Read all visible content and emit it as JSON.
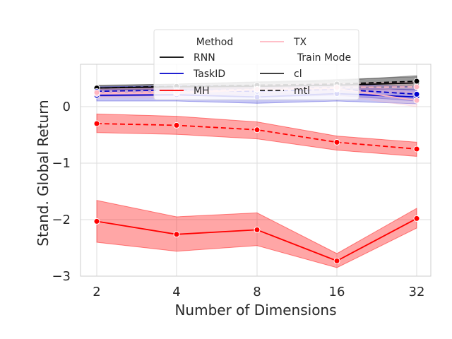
{
  "chart_data": {
    "type": "line",
    "xlabel": "Number of Dimensions",
    "ylabel": "Stand. Global Return",
    "x": [
      2,
      4,
      8,
      16,
      32
    ],
    "x_scale": "log2",
    "x_tick_labels": [
      "2",
      "4",
      "8",
      "16",
      "32"
    ],
    "y_ticks": [
      0,
      -1,
      -2,
      -3
    ],
    "y_tick_labels": [
      "0",
      "−1",
      "−2",
      "−3"
    ],
    "ylim": [
      -3,
      0.75
    ],
    "grid": true,
    "legend_placement": "top-center",
    "legend": {
      "method_title": "Method",
      "train_mode_title": "Train Mode",
      "methods": [
        {
          "label": "RNN",
          "color": "#000000"
        },
        {
          "label": "TaskID",
          "color": "#0000cc"
        },
        {
          "label": "MH",
          "color": "#ff0000"
        },
        {
          "label": "TX",
          "color": "#ffb6c1"
        }
      ],
      "train_modes": [
        {
          "label": "cl",
          "dash": "solid"
        },
        {
          "label": "mtl",
          "dash": "dashed"
        }
      ]
    },
    "series": [
      {
        "method": "RNN",
        "mode": "cl",
        "color": "#000000",
        "values": [
          0.33,
          0.35,
          0.36,
          0.38,
          0.42
        ],
        "lower": [
          0.29,
          0.3,
          0.3,
          0.31,
          0.3
        ],
        "upper": [
          0.38,
          0.4,
          0.43,
          0.46,
          0.55
        ]
      },
      {
        "method": "RNN",
        "mode": "mtl",
        "color": "#000000",
        "values": [
          0.33,
          0.36,
          0.38,
          0.4,
          0.45
        ],
        "lower": [
          0.3,
          0.31,
          0.32,
          0.33,
          0.35
        ],
        "upper": [
          0.37,
          0.4,
          0.44,
          0.48,
          0.53
        ]
      },
      {
        "method": "TaskID",
        "mode": "cl",
        "color": "#0000cc",
        "values": [
          0.2,
          0.21,
          0.17,
          0.23,
          0.17
        ],
        "lower": [
          0.1,
          0.1,
          0.06,
          0.1,
          0.05
        ],
        "upper": [
          0.3,
          0.32,
          0.3,
          0.34,
          0.3
        ]
      },
      {
        "method": "TaskID",
        "mode": "mtl",
        "color": "#0000cc",
        "values": [
          0.27,
          0.29,
          0.27,
          0.31,
          0.22
        ],
        "lower": [
          0.18,
          0.2,
          0.17,
          0.2,
          0.1
        ],
        "upper": [
          0.35,
          0.37,
          0.37,
          0.4,
          0.35
        ]
      },
      {
        "method": "TX",
        "mode": "cl",
        "color": "#ffb6c1",
        "values": [
          0.23,
          0.24,
          0.3,
          0.32,
          0.11
        ],
        "lower": [
          0.15,
          0.16,
          0.2,
          0.2,
          0.0
        ],
        "upper": [
          0.32,
          0.33,
          0.38,
          0.42,
          0.25
        ]
      },
      {
        "method": "TX",
        "mode": "mtl",
        "color": "#ffb6c1",
        "values": [
          0.25,
          0.27,
          0.31,
          0.34,
          0.35
        ],
        "lower": [
          0.18,
          0.2,
          0.24,
          0.26,
          0.25
        ],
        "upper": [
          0.31,
          0.33,
          0.37,
          0.41,
          0.44
        ]
      },
      {
        "method": "MH",
        "mode": "mtl",
        "color": "#ff0000",
        "values": [
          -0.3,
          -0.33,
          -0.41,
          -0.63,
          -0.75
        ],
        "lower": [
          -0.46,
          -0.49,
          -0.57,
          -0.77,
          -0.88
        ],
        "upper": [
          -0.13,
          -0.17,
          -0.27,
          -0.52,
          -0.63
        ]
      },
      {
        "method": "MH",
        "mode": "cl",
        "color": "#ff0000",
        "values": [
          -2.03,
          -2.26,
          -2.18,
          -2.73,
          -1.98
        ],
        "lower": [
          -2.4,
          -2.56,
          -2.46,
          -2.85,
          -2.15
        ],
        "upper": [
          -1.66,
          -1.95,
          -1.88,
          -2.6,
          -1.8
        ]
      }
    ]
  }
}
